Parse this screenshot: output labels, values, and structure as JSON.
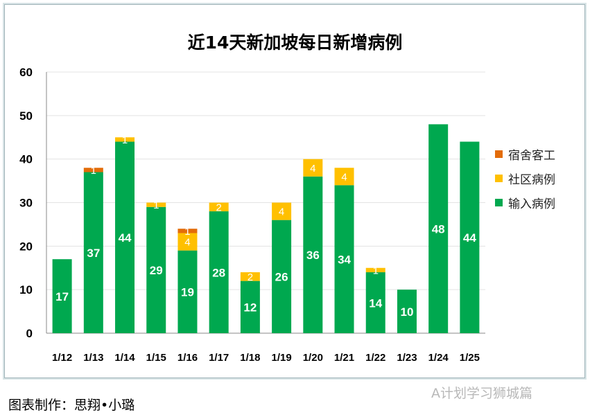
{
  "chart_data": {
    "type": "bar",
    "stacked": true,
    "title": "近14天新加坡每日新增病例",
    "categories": [
      "1/12",
      "1/13",
      "1/14",
      "1/15",
      "1/16",
      "1/17",
      "1/18",
      "1/19",
      "1/20",
      "1/21",
      "1/22",
      "1/23",
      "1/24",
      "1/25"
    ],
    "series": [
      {
        "name": "输入病例",
        "color": "#00A84F",
        "values": [
          17,
          37,
          44,
          29,
          19,
          28,
          12,
          26,
          36,
          34,
          14,
          10,
          48,
          44
        ]
      },
      {
        "name": "社区病例",
        "color": "#FFC000",
        "values": [
          0,
          0,
          1,
          1,
          4,
          2,
          2,
          4,
          4,
          4,
          1,
          0,
          0,
          0
        ]
      },
      {
        "name": "宿舍客工",
        "color": "#E36C09",
        "values": [
          0,
          1,
          0,
          0,
          1,
          0,
          0,
          0,
          0,
          0,
          0,
          0,
          0,
          0
        ]
      }
    ],
    "ylim": [
      0,
      60
    ],
    "yticks": [
      0,
      10,
      20,
      30,
      40,
      50,
      60
    ],
    "grid": true,
    "legend": "right"
  },
  "credit": "图表制作：思翔•小璐",
  "watermark": "A计划学习狮城篇"
}
